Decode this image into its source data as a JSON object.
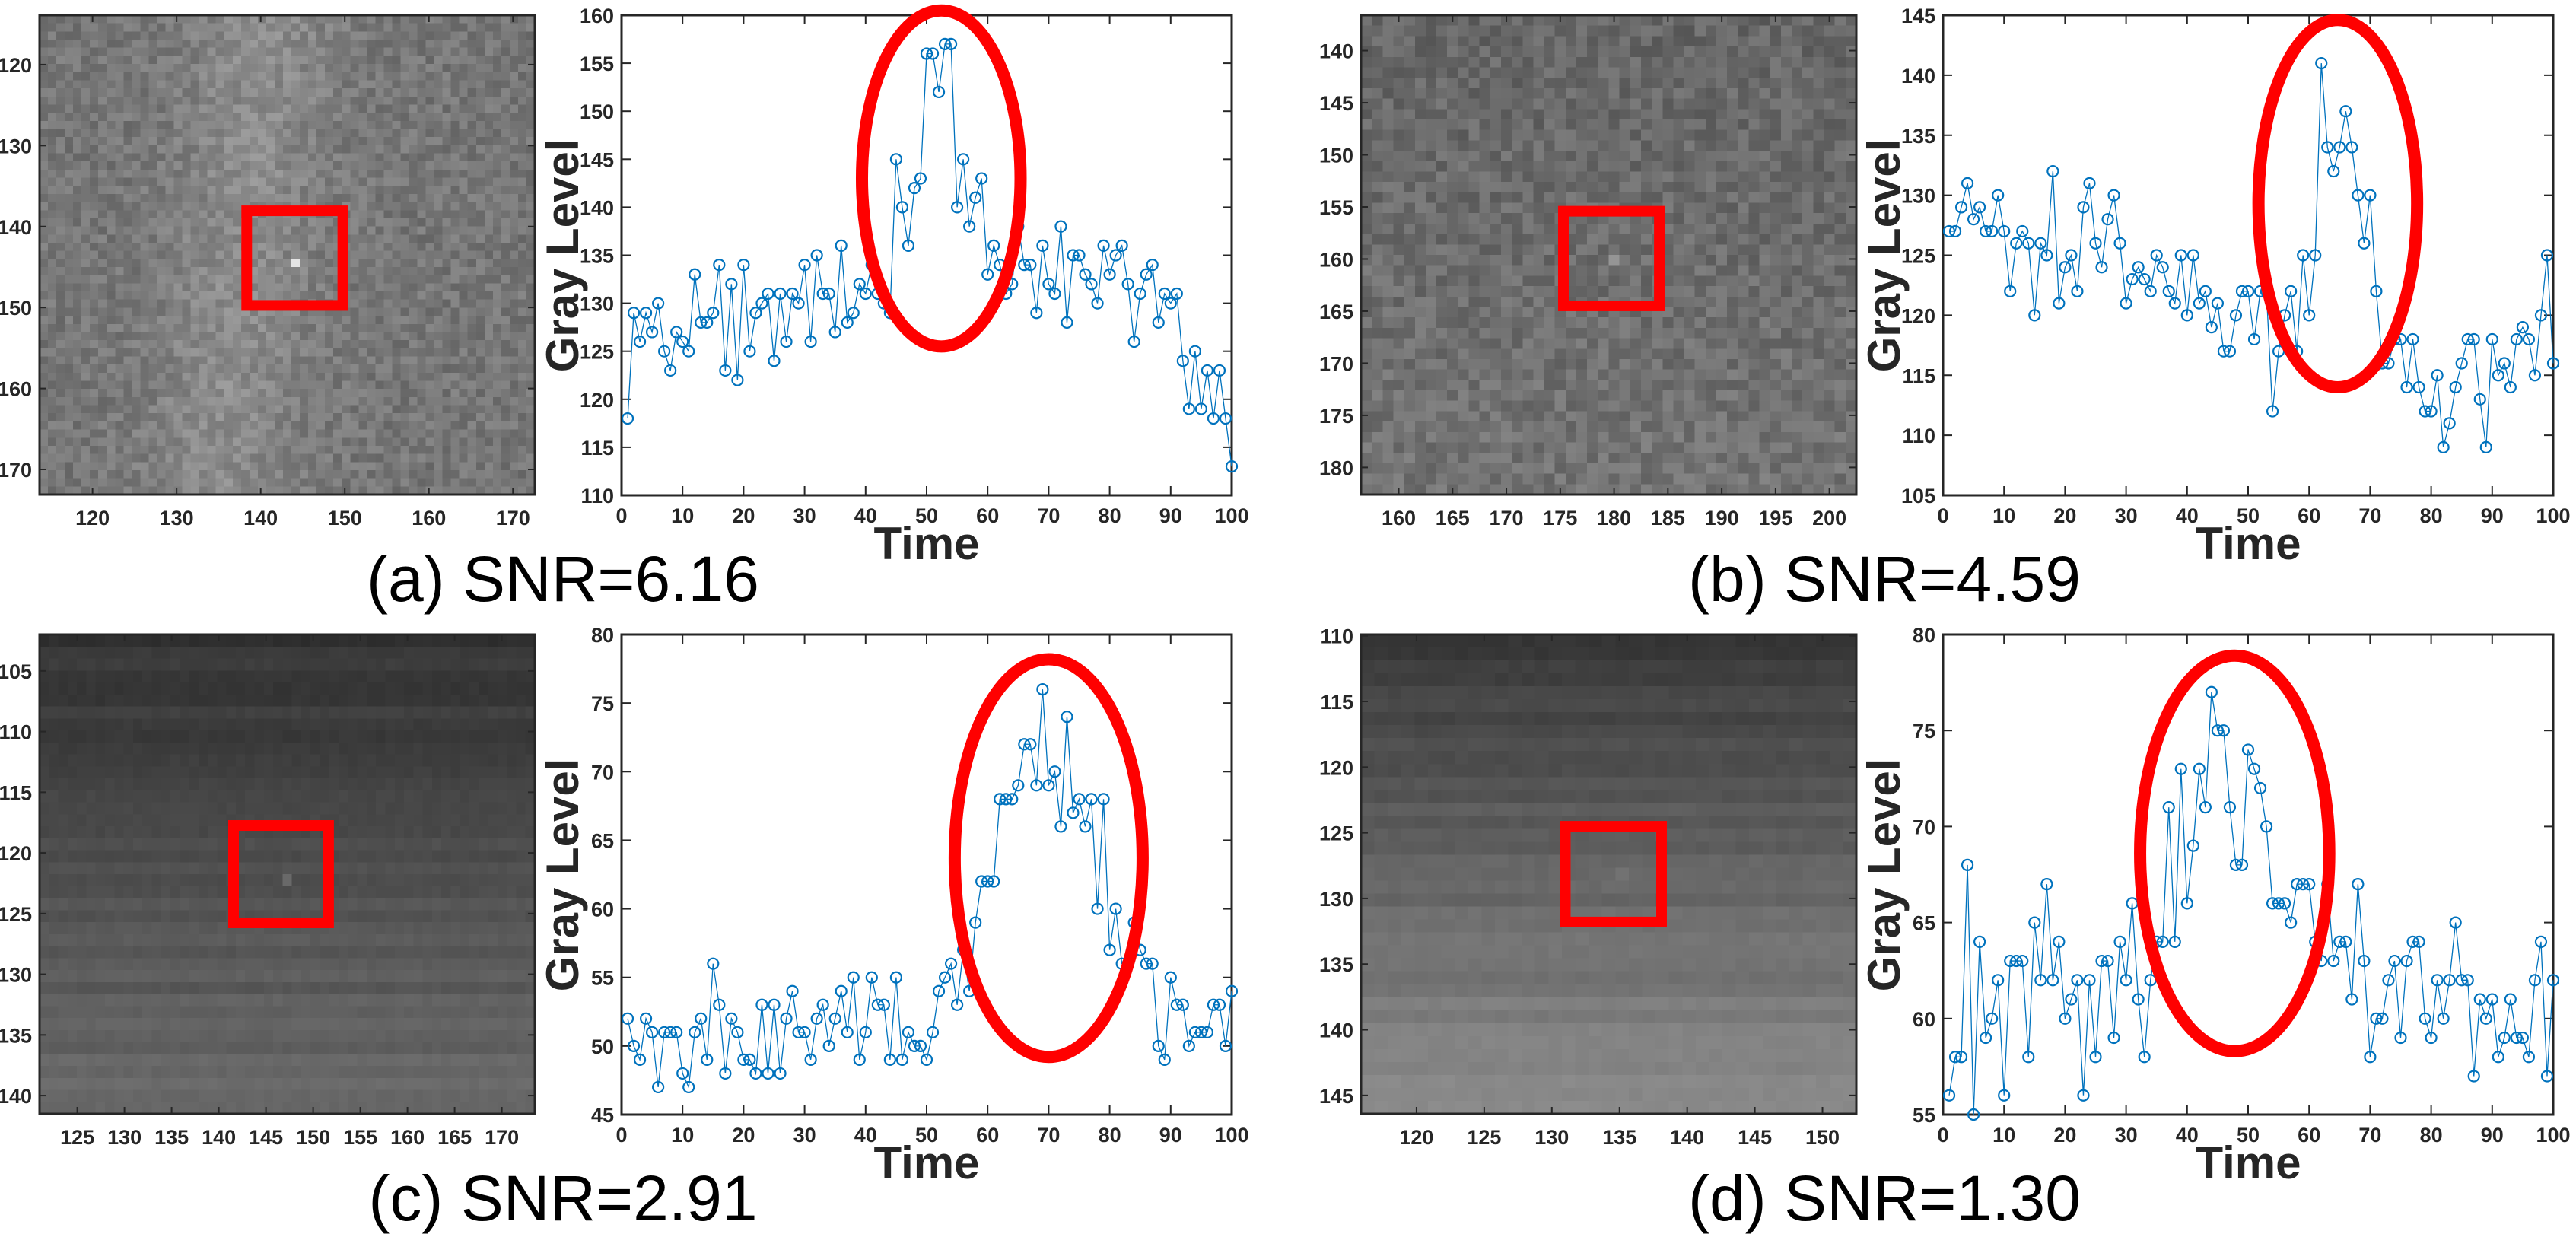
{
  "figure": {
    "line_color": "#0072BD",
    "highlight_color": "#FF0000",
    "axis_color": "#262626"
  },
  "chart_data": [
    {
      "type": "line",
      "caption": "(a) SNR=6.16",
      "image": {
        "xlim": [
          113.7,
          172.6
        ],
        "ylim": [
          113.9,
          173.1
        ],
        "xticks": [
          120,
          130,
          140,
          150,
          160,
          170
        ],
        "yticks": [
          120,
          130,
          140,
          150,
          160,
          170
        ],
        "target_box": {
          "x": [
            137.7,
            150.4
          ],
          "y": [
            137.4,
            150.4
          ]
        }
      },
      "line": {
        "xlabel": "Time",
        "ylabel": "Gray Level",
        "xlim": [
          0,
          100
        ],
        "ylim": [
          110,
          160
        ],
        "xticks": [
          0,
          10,
          20,
          30,
          40,
          50,
          60,
          70,
          80,
          90,
          100
        ],
        "yticks": [
          110,
          115,
          120,
          125,
          130,
          135,
          140,
          145,
          150,
          155,
          160
        ],
        "highlight_ellipse": {
          "cx": 52.4,
          "cy": 143,
          "rx": 13,
          "ry": 17.5
        },
        "y": [
          118,
          129,
          126,
          129,
          127,
          130,
          125,
          123,
          127,
          126,
          125,
          133,
          128,
          128,
          129,
          134,
          123,
          132,
          122,
          134,
          125,
          129,
          130,
          131,
          124,
          131,
          126,
          131,
          130,
          134,
          126,
          135,
          131,
          131,
          127,
          136,
          128,
          129,
          132,
          131,
          134,
          131,
          130,
          129,
          145,
          140,
          136,
          142,
          143,
          156,
          156,
          152,
          157,
          157,
          140,
          145,
          138,
          141,
          143,
          133,
          136,
          134,
          131,
          132,
          138,
          134,
          134,
          129,
          136,
          132,
          131,
          138,
          128,
          135,
          135,
          133,
          132,
          130,
          136,
          133,
          135,
          136,
          132,
          126,
          131,
          133,
          134,
          128,
          131,
          130,
          131,
          124,
          119,
          125,
          119,
          123,
          118,
          123,
          118,
          113
        ]
      }
    },
    {
      "type": "line",
      "caption": "(b) SNR=4.59",
      "image": {
        "xlim": [
          156.5,
          202.5
        ],
        "ylim": [
          136.6,
          182.6
        ],
        "xticks": [
          160,
          165,
          170,
          175,
          180,
          185,
          190,
          195,
          200
        ],
        "yticks": [
          140,
          145,
          150,
          155,
          160,
          165,
          170,
          175,
          180
        ],
        "target_box": {
          "x": [
            174.8,
            184.7
          ],
          "y": [
            154.9,
            165.0
          ]
        }
      },
      "line": {
        "xlabel": "Time",
        "ylabel": "Gray Level",
        "xlim": [
          0,
          100
        ],
        "ylim": [
          105,
          145
        ],
        "xticks": [
          0,
          10,
          20,
          30,
          40,
          50,
          60,
          70,
          80,
          90,
          100
        ],
        "yticks": [
          105,
          110,
          115,
          120,
          125,
          130,
          135,
          140,
          145
        ],
        "highlight_ellipse": {
          "cx": 64.7,
          "cy": 129.3,
          "rx": 13,
          "ry": 15.3
        },
        "y": [
          127,
          127,
          129,
          131,
          128,
          129,
          127,
          127,
          130,
          127,
          122,
          126,
          127,
          126,
          120,
          126,
          125,
          132,
          121,
          124,
          125,
          122,
          129,
          131,
          126,
          124,
          128,
          130,
          126,
          121,
          123,
          124,
          123,
          122,
          125,
          124,
          122,
          121,
          125,
          120,
          125,
          121,
          122,
          119,
          121,
          117,
          117,
          120,
          122,
          122,
          118,
          122,
          122,
          112,
          117,
          120,
          122,
          117,
          125,
          120,
          125,
          141,
          134,
          132,
          134,
          137,
          134,
          130,
          126,
          130,
          122,
          116,
          116,
          118,
          118,
          114,
          118,
          114,
          112,
          112,
          115,
          109,
          111,
          114,
          116,
          118,
          118,
          113,
          109,
          118,
          115,
          116,
          114,
          118,
          119,
          118,
          115,
          120,
          125,
          116
        ]
      }
    },
    {
      "type": "line",
      "caption": "(c) SNR=2.91",
      "image": {
        "xlim": [
          121,
          173.5
        ],
        "ylim": [
          102,
          141.5
        ],
        "xticks": [
          125,
          130,
          135,
          140,
          145,
          150,
          155,
          160,
          165,
          170
        ],
        "yticks": [
          105,
          110,
          115,
          120,
          125,
          130,
          135,
          140
        ],
        "target_box": {
          "x": [
            141,
            152.2
          ],
          "y": [
            117.3,
            126.2
          ]
        }
      },
      "line": {
        "xlabel": "Time",
        "ylabel": "Gray Level",
        "xlim": [
          0,
          100
        ],
        "ylim": [
          45,
          80
        ],
        "xticks": [
          0,
          10,
          20,
          30,
          40,
          50,
          60,
          70,
          80,
          90,
          100
        ],
        "yticks": [
          45,
          50,
          55,
          60,
          65,
          70,
          75,
          80
        ],
        "highlight_ellipse": {
          "cx": 70,
          "cy": 63.7,
          "rx": 15.4,
          "ry": 14.5
        },
        "y": [
          52,
          50,
          49,
          52,
          51,
          47,
          51,
          51,
          51,
          48,
          47,
          51,
          52,
          49,
          56,
          53,
          48,
          52,
          51,
          49,
          49,
          48,
          53,
          48,
          53,
          48,
          52,
          54,
          51,
          51,
          49,
          52,
          53,
          50,
          52,
          54,
          51,
          55,
          49,
          51,
          55,
          53,
          53,
          49,
          55,
          49,
          51,
          50,
          50,
          49,
          51,
          54,
          55,
          56,
          53,
          57,
          54,
          59,
          62,
          62,
          62,
          68,
          68,
          68,
          69,
          72,
          72,
          69,
          76,
          69,
          70,
          66,
          74,
          67,
          68,
          66,
          68,
          60,
          68,
          57,
          60,
          56,
          56,
          59,
          57,
          56,
          56,
          50,
          49,
          55,
          53,
          53,
          50,
          51,
          51,
          51,
          53,
          53,
          50,
          54
        ]
      }
    },
    {
      "type": "line",
      "caption": "(d) SNR=1.30",
      "image": {
        "xlim": [
          115.9,
          152.5
        ],
        "ylim": [
          109.9,
          146.4
        ],
        "xticks": [
          120,
          125,
          130,
          135,
          140,
          145,
          150
        ],
        "yticks": [
          110,
          115,
          120,
          125,
          130,
          135,
          140,
          145
        ],
        "target_box": {
          "x": [
            130.6,
            138.5
          ],
          "y": [
            124.1,
            132.2
          ]
        }
      },
      "line": {
        "xlabel": "Time",
        "ylabel": "Gray Level",
        "xlim": [
          0,
          100
        ],
        "ylim": [
          55,
          80
        ],
        "xticks": [
          0,
          10,
          20,
          30,
          40,
          50,
          60,
          70,
          80,
          90,
          100
        ],
        "yticks": [
          55,
          60,
          65,
          70,
          75,
          80
        ],
        "highlight_ellipse": {
          "cx": 47.8,
          "cy": 68.6,
          "rx": 15.5,
          "ry": 10.3
        },
        "y": [
          56,
          58,
          58,
          68,
          55,
          64,
          59,
          60,
          62,
          56,
          63,
          63,
          63,
          58,
          65,
          62,
          67,
          62,
          64,
          60,
          61,
          62,
          56,
          62,
          58,
          63,
          63,
          59,
          64,
          62,
          66,
          61,
          58,
          62,
          64,
          64,
          71,
          64,
          73,
          66,
          69,
          73,
          71,
          77,
          75,
          75,
          71,
          68,
          68,
          74,
          73,
          72,
          70,
          66,
          66,
          66,
          65,
          67,
          67,
          67,
          64,
          63,
          67,
          63,
          64,
          64,
          61,
          67,
          63,
          58,
          60,
          60,
          62,
          63,
          59,
          63,
          64,
          64,
          60,
          59,
          62,
          60,
          62,
          65,
          62,
          62,
          57,
          61,
          60,
          61,
          58,
          59,
          61,
          59,
          59,
          58,
          62,
          64,
          57,
          62
        ]
      }
    }
  ]
}
